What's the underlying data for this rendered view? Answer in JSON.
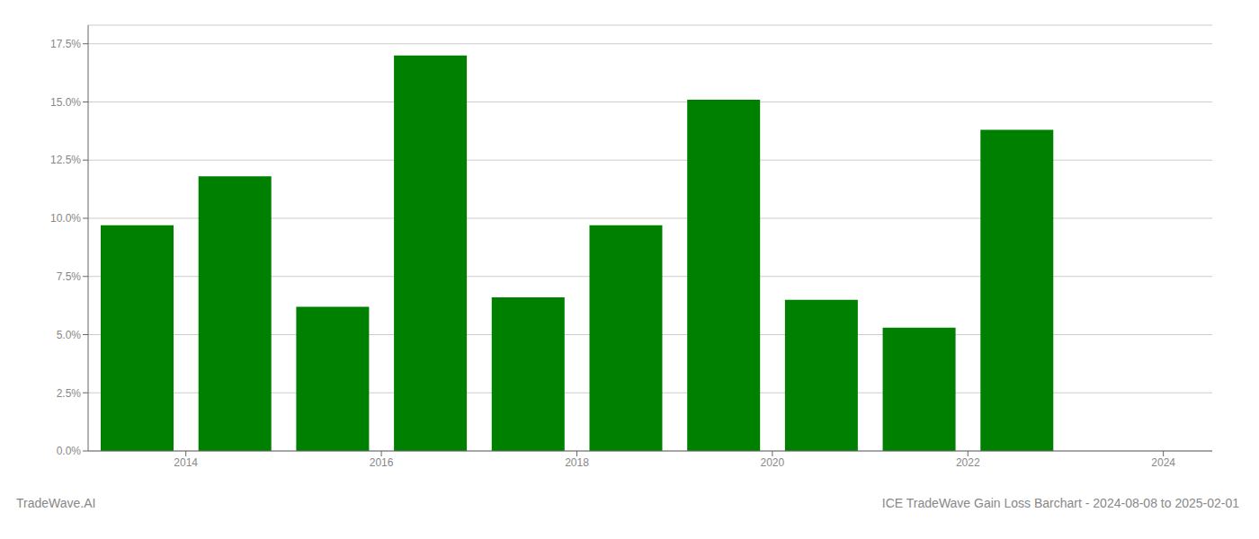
{
  "chart_data": {
    "type": "bar",
    "x": [
      2013.5,
      2014.5,
      2015.5,
      2016.5,
      2017.5,
      2018.5,
      2019.5,
      2020.5,
      2021.5,
      2022.5
    ],
    "values": [
      0.097,
      0.118,
      0.062,
      0.17,
      0.066,
      0.097,
      0.151,
      0.065,
      0.053,
      0.138
    ],
    "color": "#008000",
    "xlim": [
      2013.0,
      2024.5
    ],
    "xticks": [
      2014,
      2016,
      2018,
      2020,
      2022,
      2024
    ],
    "ylim": [
      0,
      0.183
    ],
    "yticks": [
      {
        "value": 0.0,
        "label": "0.0%"
      },
      {
        "value": 0.025,
        "label": "2.5%"
      },
      {
        "value": 0.05,
        "label": "5.0%"
      },
      {
        "value": 0.075,
        "label": "7.5%"
      },
      {
        "value": 0.1,
        "label": "10.0%"
      },
      {
        "value": 0.125,
        "label": "12.5%"
      },
      {
        "value": 0.15,
        "label": "15.0%"
      },
      {
        "value": 0.175,
        "label": "17.5%"
      }
    ],
    "grid": true,
    "annotations": [
      "TradeWave.AI",
      "ICE TradeWave Gain Loss Barchart - 2024-08-08 to 2025-02-01"
    ]
  }
}
